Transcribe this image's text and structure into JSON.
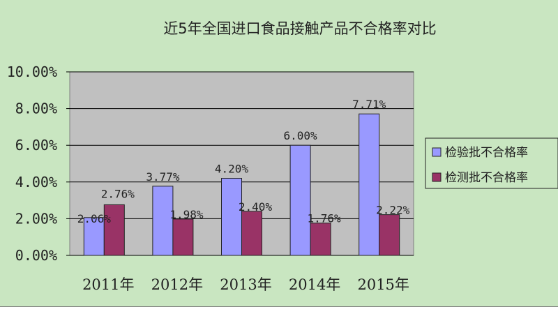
{
  "chart_data": {
    "type": "bar",
    "title": "近5年全国进口食品接触产品不合格率对比",
    "categories": [
      "2011年",
      "2012年",
      "2013年",
      "2014年",
      "2015年"
    ],
    "series": [
      {
        "name": "检验批不合格率",
        "values": [
          2.06,
          3.77,
          4.2,
          6.0,
          7.71
        ],
        "labels": [
          "2.06%",
          "3.77%",
          "4.20%",
          "6.00%",
          "7.71%"
        ],
        "color": "#9999ff"
      },
      {
        "name": "检测批不合格率",
        "values": [
          2.76,
          1.98,
          2.4,
          1.76,
          2.22
        ],
        "labels": [
          "2.76%",
          "1.98%",
          "2.40%",
          "1.76%",
          "2.22%"
        ],
        "color": "#993366"
      }
    ],
    "y_ticks": [
      "0.00%",
      "2.00%",
      "4.00%",
      "6.00%",
      "8.00%",
      "10.00%"
    ],
    "ylim": [
      0,
      10
    ],
    "grid": true,
    "legend_position": "right",
    "colors": {
      "plot_background": "#c0c0c0",
      "chart_background": "#c9e6c1"
    }
  }
}
